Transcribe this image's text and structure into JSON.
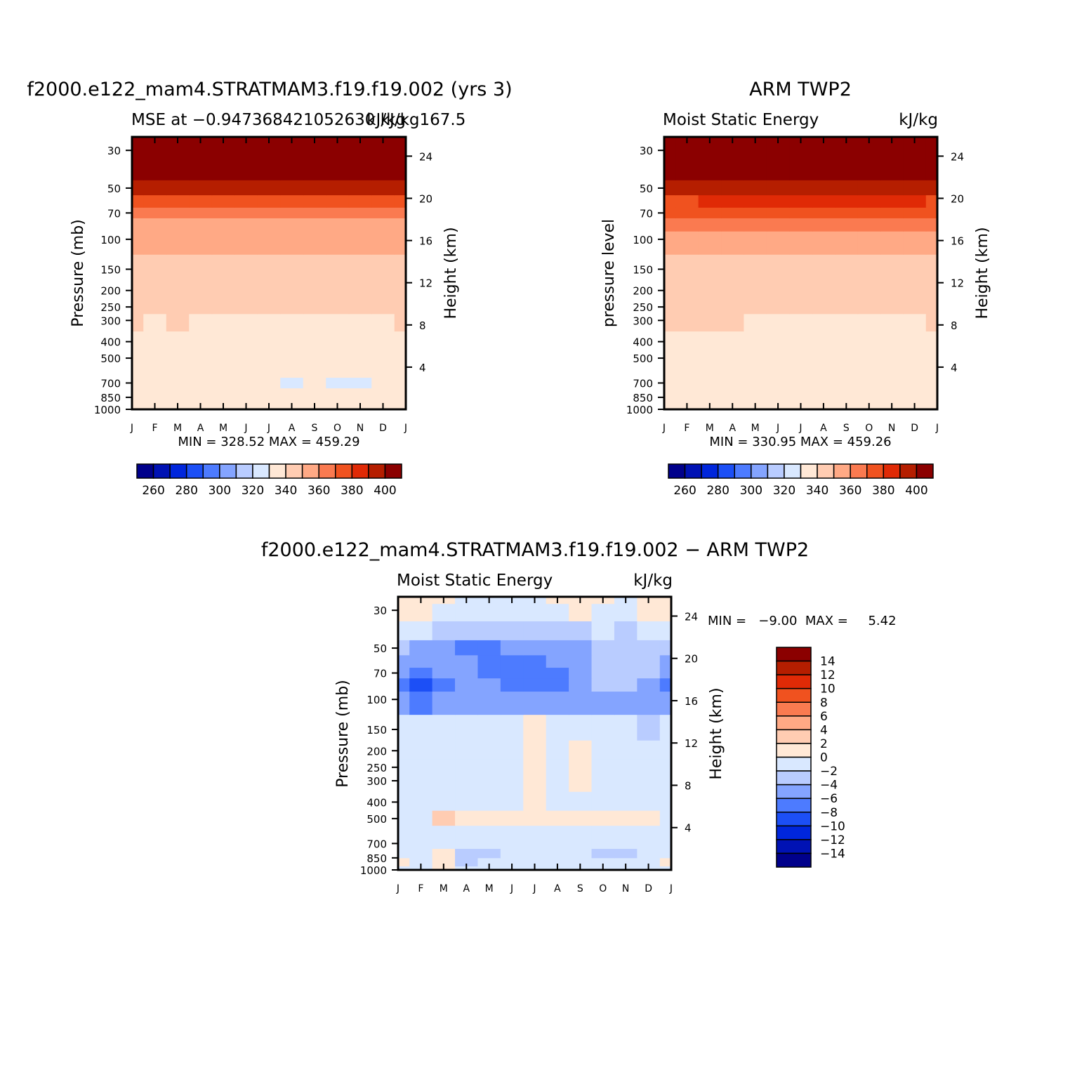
{
  "figure": {
    "panels": [
      {
        "id": "model",
        "title": "f2000.e122_mam4.STRATMAM3.f19.f19.002 (yrs 3)",
        "subtitle_left": "MSE at −0.947368421052630 kJ/kg167.5",
        "subtitle_right": "kJ/kg",
        "ylabel": "Pressure (mb)",
        "y2label": "Height (km)",
        "minmax": "MIN = 328.52  MAX = 459.29"
      },
      {
        "id": "obs",
        "title": "ARM TWP2",
        "subtitle_left": "Moist Static Energy",
        "subtitle_right": "kJ/kg",
        "ylabel": "pressure level",
        "y2label": "Height (km)",
        "minmax": "MIN = 330.95  MAX = 459.26"
      },
      {
        "id": "diff",
        "title": "f2000.e122_mam4.STRATMAM3.f19.f19.002 − ARM TWP2",
        "subtitle_left": "Moist Static Energy",
        "subtitle_right": "kJ/kg",
        "ylabel": "Pressure (mb)",
        "y2label": "Height (km)",
        "minmax": "MIN =   −9.00  MAX =     5.42"
      }
    ]
  },
  "chart_data": [
    {
      "type": "heatmap",
      "title": "f2000.e122_mam4.STRATMAM3.f19.f19.002 (yrs 3)",
      "subtitle": "MSE at −0.947368421052630 kJ/kg167.5",
      "units": "kJ/kg",
      "xlabel": "",
      "ylabel": "Pressure (mb)",
      "y2label": "Height (km)",
      "x_ticks": [
        "J",
        "F",
        "M",
        "A",
        "M",
        "J",
        "J",
        "A",
        "S",
        "O",
        "N",
        "D",
        "J"
      ],
      "y_ticks": [
        30,
        50,
        70,
        100,
        150,
        200,
        250,
        300,
        400,
        500,
        700,
        850,
        1000
      ],
      "y2_ticks": [
        4,
        8,
        12,
        16,
        20,
        24
      ],
      "y_scale": "log",
      "ylim": [
        1000,
        25
      ],
      "contour_levels": [
        260,
        270,
        280,
        290,
        300,
        310,
        320,
        330,
        340,
        350,
        360,
        370,
        380,
        390,
        400
      ],
      "colorbar_labels": [
        260,
        280,
        300,
        320,
        340,
        360,
        380,
        400
      ],
      "min": 328.52,
      "max": 459.29,
      "level_pressures": [
        1000,
        900,
        800,
        700,
        600,
        500,
        400,
        300,
        250,
        200,
        150,
        100,
        80,
        70,
        60,
        50,
        40,
        30,
        25
      ],
      "months": [
        "J",
        "F",
        "M",
        "A",
        "M",
        "J",
        "J",
        "A",
        "S",
        "O",
        "N",
        "D",
        "J"
      ],
      "values": [
        [
          338.0,
          337.2,
          338.2,
          337.6,
          337.5,
          337.5,
          337.4,
          337.5,
          337.6,
          337.6,
          337.7,
          337.8,
          338.0
        ],
        [
          336.0,
          335.8,
          336.0,
          335.8,
          335.7,
          335.6,
          335.5,
          335.6,
          335.7,
          335.8,
          335.9,
          336.0,
          336.0
        ],
        [
          334.0,
          334.0,
          333.9,
          333.8,
          333.5,
          333.3,
          333.0,
          333.4,
          333.2,
          333.0,
          333.4,
          333.8,
          334.0
        ],
        [
          332.5,
          332.6,
          332.4,
          332.2,
          331.8,
          331.5,
          331.3,
          329.6,
          331.0,
          329.3,
          329.4,
          330.5,
          332.5
        ],
        [
          332.0,
          332.1,
          331.9,
          331.8,
          331.5,
          331.4,
          331.2,
          331.0,
          331.0,
          330.8,
          330.9,
          331.4,
          332.0
        ],
        [
          333.0,
          333.1,
          333.0,
          332.8,
          332.6,
          332.5,
          332.4,
          332.2,
          332.2,
          332.0,
          332.1,
          332.5,
          333.0
        ],
        [
          336.0,
          336.2,
          336.0,
          336.0,
          335.8,
          335.8,
          335.8,
          335.6,
          335.8,
          335.8,
          335.8,
          336.0,
          336.0
        ],
        [
          340.5,
          339.0,
          340.7,
          339.2,
          338.5,
          339.1,
          339.0,
          338.6,
          338.8,
          338.4,
          338.2,
          338.4,
          340.5
        ],
        [
          342.5,
          342.4,
          342.5,
          342.0,
          341.8,
          341.8,
          341.7,
          341.6,
          341.5,
          341.5,
          341.5,
          341.6,
          342.5
        ],
        [
          344.0,
          344.0,
          344.0,
          343.8,
          343.6,
          343.5,
          343.4,
          343.3,
          343.2,
          343.2,
          343.2,
          343.3,
          344.0
        ],
        [
          346.0,
          346.0,
          346.0,
          346.0,
          345.8,
          345.8,
          345.6,
          345.6,
          345.5,
          345.5,
          345.5,
          345.6,
          346.0
        ],
        [
          350.5,
          350.5,
          351.5,
          352.0,
          352.5,
          352.5,
          353.0,
          352.5,
          352.5,
          352.3,
          351.5,
          351.0,
          350.5
        ],
        [
          356.5,
          356.6,
          357.0,
          357.5,
          358.0,
          358.5,
          358.8,
          358.5,
          358.4,
          358.0,
          357.5,
          357.0,
          356.5
        ],
        [
          363.0,
          363.0,
          363.5,
          364.0,
          364.5,
          365.0,
          365.5,
          365.5,
          365.0,
          364.5,
          364.0,
          363.5,
          363.0
        ],
        [
          373.0,
          373.0,
          373.5,
          374.0,
          375.0,
          376.0,
          376.5,
          376.5,
          376.0,
          375.0,
          374.0,
          373.5,
          373.0
        ],
        [
          399.0,
          398.0,
          397.0,
          397.0,
          397.5,
          397.5,
          398.0,
          398.5,
          398.5,
          398.0,
          398.0,
          399.0,
          399.0
        ],
        [
          425.0,
          425.0,
          425.0,
          425.0,
          425.0,
          425.0,
          425.0,
          425.0,
          425.0,
          425.0,
          425.0,
          425.0,
          425.0
        ],
        [
          445.0,
          445.0,
          445.0,
          445.0,
          445.0,
          445.0,
          445.0,
          445.0,
          445.0,
          445.0,
          445.0,
          445.0,
          445.0
        ],
        [
          455.0,
          455.0,
          455.0,
          455.0,
          455.0,
          455.0,
          455.0,
          455.0,
          455.0,
          455.0,
          455.0,
          455.0,
          455.0
        ]
      ]
    },
    {
      "type": "heatmap",
      "title": "ARM TWP2",
      "subtitle": "Moist Static Energy",
      "units": "kJ/kg",
      "xlabel": "",
      "ylabel": "pressure level",
      "y2label": "Height (km)",
      "x_ticks": [
        "J",
        "F",
        "M",
        "A",
        "M",
        "J",
        "J",
        "A",
        "S",
        "O",
        "N",
        "D",
        "J"
      ],
      "y_ticks": [
        30,
        50,
        70,
        100,
        150,
        200,
        250,
        300,
        400,
        500,
        700,
        850,
        1000
      ],
      "y2_ticks": [
        4,
        8,
        12,
        16,
        20,
        24
      ],
      "y_scale": "log",
      "ylim": [
        1000,
        25
      ],
      "contour_levels": [
        260,
        270,
        280,
        290,
        300,
        310,
        320,
        330,
        340,
        350,
        360,
        370,
        380,
        390,
        400
      ],
      "colorbar_labels": [
        260,
        280,
        300,
        320,
        340,
        360,
        380,
        400
      ],
      "min": 330.95,
      "max": 459.26,
      "level_pressures": [
        1000,
        900,
        800,
        700,
        600,
        500,
        400,
        300,
        250,
        200,
        150,
        100,
        80,
        70,
        60,
        50,
        40,
        30,
        25
      ],
      "months": [
        "J",
        "F",
        "M",
        "A",
        "M",
        "J",
        "J",
        "A",
        "S",
        "O",
        "N",
        "D",
        "J"
      ],
      "values": [
        [
          338.0,
          338.5,
          338.5,
          338.8,
          338.5,
          338.3,
          338.2,
          338.4,
          338.3,
          338.3,
          338.2,
          338.5,
          338.0
        ],
        [
          336.5,
          336.6,
          336.7,
          336.5,
          336.4,
          336.3,
          336.2,
          336.3,
          336.4,
          336.4,
          336.5,
          336.6,
          336.5
        ],
        [
          335.0,
          335.1,
          335.2,
          335.0,
          334.8,
          334.7,
          334.5,
          334.6,
          334.7,
          334.8,
          334.9,
          335.0,
          335.0
        ],
        [
          334.0,
          334.0,
          334.0,
          333.8,
          333.6,
          333.4,
          333.3,
          333.4,
          333.5,
          333.6,
          333.8,
          334.0,
          334.0
        ],
        [
          334.0,
          334.0,
          334.0,
          333.9,
          333.8,
          333.7,
          333.6,
          333.6,
          333.7,
          333.8,
          333.9,
          334.0,
          334.0
        ],
        [
          335.0,
          335.0,
          335.0,
          334.9,
          334.8,
          334.8,
          334.7,
          334.7,
          334.8,
          334.8,
          334.9,
          335.0,
          335.0
        ],
        [
          337.0,
          337.0,
          337.0,
          336.9,
          336.8,
          336.7,
          336.6,
          336.6,
          336.7,
          336.8,
          336.9,
          337.0,
          337.0
        ],
        [
          340.5,
          340.3,
          340.2,
          340.0,
          339.8,
          339.0,
          338.6,
          339.0,
          338.4,
          338.9,
          339.2,
          339.3,
          340.5
        ],
        [
          342.5,
          342.4,
          342.3,
          342.2,
          342.0,
          341.8,
          341.6,
          341.6,
          341.5,
          341.6,
          341.8,
          342.0,
          342.5
        ],
        [
          344.0,
          344.0,
          343.9,
          343.8,
          343.6,
          343.5,
          343.4,
          343.4,
          343.3,
          343.4,
          343.5,
          343.7,
          344.0
        ],
        [
          347.0,
          347.0,
          346.8,
          346.6,
          346.3,
          346.0,
          345.8,
          345.8,
          345.7,
          345.8,
          346.0,
          346.5,
          347.0
        ],
        [
          356.0,
          356.2,
          356.5,
          357.0,
          357.5,
          358.0,
          358.3,
          358.5,
          358.2,
          357.8,
          357.0,
          356.5,
          356.0
        ],
        [
          363.5,
          363.7,
          364.0,
          364.5,
          365.0,
          365.5,
          366.0,
          366.5,
          366.0,
          365.5,
          364.5,
          364.0,
          363.5
        ],
        [
          370.0,
          370.3,
          370.8,
          371.5,
          372.3,
          373.2,
          374.0,
          374.5,
          374.0,
          373.0,
          372.0,
          371.0,
          370.0
        ],
        [
          379.0,
          379.3,
          380.0,
          381.0,
          382.5,
          384.0,
          385.5,
          386.0,
          385.0,
          383.5,
          382.0,
          380.5,
          379.0
        ],
        [
          395.0,
          395.3,
          396.0,
          397.0,
          398.0,
          399.0,
          399.5,
          399.7,
          399.5,
          398.5,
          397.0,
          396.0,
          395.0
        ],
        [
          420.0,
          420.0,
          420.0,
          420.0,
          420.0,
          420.0,
          420.0,
          420.0,
          420.0,
          420.0,
          420.0,
          420.0,
          420.0
        ],
        [
          445.0,
          445.0,
          445.0,
          445.0,
          445.0,
          445.0,
          445.0,
          445.0,
          445.0,
          445.0,
          445.0,
          445.0,
          445.0
        ],
        [
          455.0,
          455.0,
          455.0,
          455.0,
          455.0,
          455.0,
          455.0,
          455.0,
          455.0,
          455.0,
          455.0,
          455.0,
          455.0
        ]
      ]
    },
    {
      "type": "heatmap",
      "title": "f2000.e122_mam4.STRATMAM3.f19.f19.002 − ARM TWP2",
      "subtitle": "Moist Static Energy",
      "units": "kJ/kg",
      "xlabel": "",
      "ylabel": "Pressure (mb)",
      "y2label": "Height (km)",
      "x_ticks": [
        "J",
        "F",
        "M",
        "A",
        "M",
        "J",
        "J",
        "A",
        "S",
        "O",
        "N",
        "D",
        "J"
      ],
      "y_ticks": [
        30,
        50,
        70,
        100,
        150,
        200,
        250,
        300,
        400,
        500,
        700,
        850,
        1000
      ],
      "y2_ticks": [
        4,
        8,
        12,
        16,
        20,
        24
      ],
      "y_scale": "log",
      "ylim": [
        1000,
        25
      ],
      "contour_levels": [
        -14,
        -12,
        -10,
        -8,
        -6,
        -4,
        -2,
        0,
        2,
        4,
        6,
        8,
        10,
        12,
        14
      ],
      "colorbar_labels": [
        14,
        12,
        10,
        8,
        6,
        4,
        2,
        0,
        -2,
        -4,
        -6,
        -8,
        -10,
        -12,
        -14
      ],
      "min": -9.0,
      "max": 5.42,
      "level_pressures": [
        1000,
        900,
        800,
        700,
        600,
        500,
        400,
        300,
        250,
        200,
        150,
        100,
        80,
        70,
        60,
        50,
        40,
        30,
        25
      ],
      "months": [
        "J",
        "F",
        "M",
        "A",
        "M",
        "J",
        "J",
        "A",
        "S",
        "O",
        "N",
        "D",
        "J"
      ],
      "values": [
        [
          -0.5,
          -1.5,
          0.5,
          -1.2,
          -1.0,
          -0.8,
          -0.8,
          -0.9,
          -0.7,
          -0.7,
          -0.5,
          -0.7,
          -0.5
        ],
        [
          0.5,
          -0.5,
          0.7,
          -2.3,
          -1.2,
          -1.0,
          -1.0,
          -1.2,
          -0.2,
          -0.5,
          -1.0,
          -0.6,
          0.5
        ],
        [
          -0.5,
          -1.0,
          0.5,
          -2.2,
          -2.5,
          -0.6,
          -0.6,
          -1.4,
          -1.2,
          -2.5,
          -2.4,
          -1.2,
          -0.5
        ],
        [
          -1.2,
          -2.0,
          -1.0,
          -1.5,
          -1.2,
          -1.3,
          -1.5,
          -1.5,
          -1.2,
          -1.2,
          -1.3,
          -1.5,
          -1.2
        ],
        [
          -1.5,
          -1.3,
          -1.2,
          -1.2,
          -1.5,
          -1.5,
          -1.6,
          -1.5,
          -1.5,
          -1.5,
          -1.4,
          -1.6,
          -1.5
        ],
        [
          -1.0,
          -0.5,
          2.2,
          1.0,
          1.5,
          0.6,
          0.5,
          0.3,
          0.3,
          0.2,
          0.5,
          1.5,
          -1.0
        ],
        [
          -0.5,
          -0.5,
          -0.5,
          -0.8,
          -1.0,
          -0.5,
          0.5,
          -0.5,
          -0.6,
          -0.8,
          -1.0,
          -1.0,
          -0.5
        ],
        [
          -0.5,
          -1.0,
          -0.2,
          -1.0,
          -1.0,
          -0.5,
          0.6,
          -0.5,
          0.6,
          -1.0,
          -1.0,
          -1.0,
          -0.5
        ],
        [
          -0.5,
          -1.0,
          -0.2,
          -1.0,
          -1.0,
          -0.5,
          0.6,
          -0.5,
          0.6,
          -1.0,
          -1.0,
          -1.0,
          -0.5
        ],
        [
          -1.5,
          -1.5,
          -1.5,
          -1.5,
          -1.5,
          -0.5,
          0.6,
          -1.0,
          0.5,
          -1.5,
          -1.5,
          -1.5,
          -1.5
        ],
        [
          -1.5,
          -1.5,
          -1.5,
          -1.5,
          -1.5,
          -1.0,
          0.6,
          -1.0,
          -1.0,
          -1.5,
          -2.0,
          -2.5,
          -1.5
        ],
        [
          -6.0,
          -6.5,
          -5.0,
          -4.5,
          -4.5,
          -5.0,
          -5.5,
          -5.0,
          -5.0,
          -5.0,
          -5.5,
          -4.5,
          -6.0
        ],
        [
          -7.5,
          -9.0,
          -7.0,
          -5.5,
          -5.5,
          -6.5,
          -7.0,
          -6.5,
          -6.0,
          -4.0,
          -4.0,
          -4.5,
          -7.5
        ],
        [
          -6.0,
          -6.5,
          -6.0,
          -5.0,
          -6.5,
          -7.0,
          -7.5,
          -6.5,
          -6.0,
          -4.0,
          -3.5,
          -4.0,
          -6.0
        ],
        [
          -6.0,
          -5.5,
          -5.0,
          -6.0,
          -6.5,
          -7.0,
          -7.0,
          -6.0,
          -5.5,
          -3.5,
          -3.0,
          -3.5,
          -6.0
        ],
        [
          -4.0,
          -4.5,
          -5.0,
          -6.5,
          -6.5,
          -6.0,
          -5.5,
          -5.0,
          -4.5,
          -3.5,
          -3.0,
          -3.5,
          -4.0
        ],
        [
          -1.5,
          -2.0,
          -3.0,
          -3.5,
          -3.5,
          -3.5,
          -3.5,
          -3.0,
          -2.5,
          -2.0,
          -2.5,
          -2.0,
          -1.5
        ],
        [
          0.5,
          0.2,
          -0.5,
          -1.5,
          -2.0,
          -2.0,
          -2.0,
          -1.5,
          0.5,
          -1.0,
          -1.5,
          0.5,
          0.5
        ],
        [
          0.5,
          0.5,
          0.5,
          -0.5,
          -0.5,
          -0.5,
          -0.5,
          0.5,
          0.5,
          0.5,
          -0.5,
          0.5,
          0.5
        ]
      ]
    }
  ]
}
